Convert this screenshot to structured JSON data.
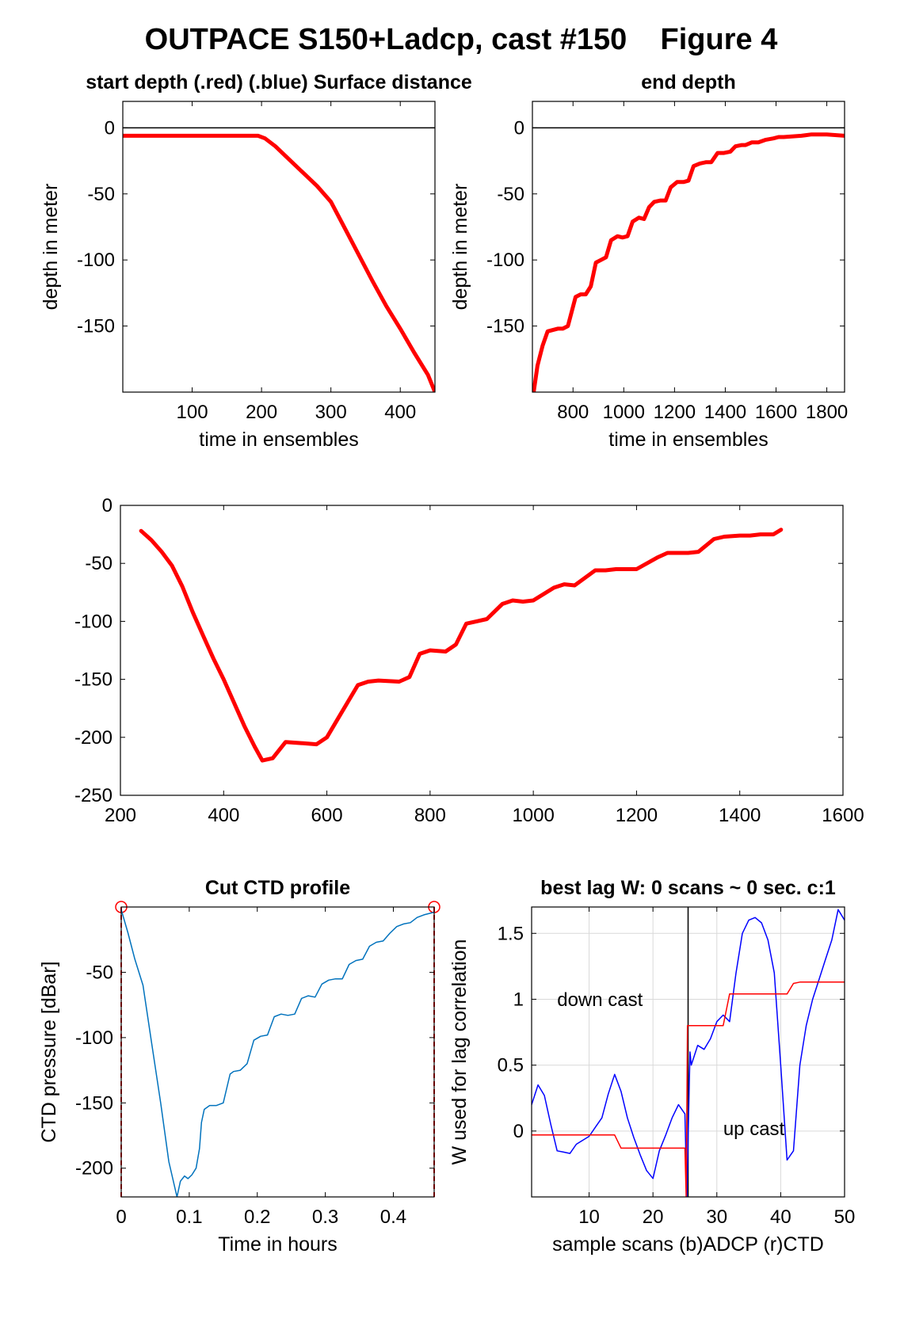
{
  "figure_title": "OUTPACE S150+Ladcp, cast #150    Figure 4",
  "colors": {
    "red": "#ff0000",
    "blue": "#0000ff",
    "ctd": "#0072bd",
    "grid": "#d9d9d9",
    "axis": "#000000"
  },
  "chart_data": [
    {
      "id": "p1",
      "type": "line",
      "title": "start depth (.red) (.blue) Surface distance",
      "xlabel": "time in ensembles",
      "ylabel": "depth in meter",
      "xlim": [
        0,
        450
      ],
      "ylim": [
        -200,
        20
      ],
      "xticks": [
        100,
        200,
        300,
        400
      ],
      "yticks": [
        0,
        -50,
        -100,
        -150
      ],
      "zero_line": true,
      "series": [
        {
          "color": "red",
          "width": 5,
          "x": [
            0,
            100,
            195,
            205,
            220,
            240,
            260,
            280,
            300,
            320,
            340,
            360,
            380,
            400,
            420,
            440,
            450
          ],
          "y": [
            -6,
            -6,
            -6,
            -8,
            -14,
            -24,
            -34,
            -44,
            -56,
            -76,
            -96,
            -116,
            -135,
            -152,
            -170,
            -187,
            -200
          ]
        }
      ]
    },
    {
      "id": "p2",
      "type": "line",
      "title": "end depth",
      "xlabel": "time in ensembles",
      "ylabel": "depth in meter",
      "xlim": [
        640,
        1870
      ],
      "ylim": [
        -200,
        20
      ],
      "xticks": [
        800,
        1000,
        1200,
        1400,
        1600,
        1800
      ],
      "yticks": [
        0,
        -50,
        -100,
        -150
      ],
      "zero_line": true,
      "series": [
        {
          "color": "red",
          "width": 5,
          "x": [
            645,
            660,
            680,
            700,
            740,
            760,
            780,
            810,
            830,
            850,
            870,
            890,
            910,
            930,
            950,
            975,
            995,
            1015,
            1035,
            1060,
            1080,
            1100,
            1120,
            1145,
            1165,
            1185,
            1210,
            1235,
            1255,
            1275,
            1300,
            1325,
            1345,
            1370,
            1395,
            1420,
            1440,
            1465,
            1480,
            1505,
            1530,
            1560,
            1590,
            1610,
            1630,
            1700,
            1740,
            1800,
            1870
          ],
          "y": [
            -200,
            -180,
            -165,
            -154,
            -152,
            -152,
            -150,
            -128,
            -126,
            -126,
            -120,
            -102,
            -100,
            -98,
            -85,
            -82,
            -83,
            -82,
            -71,
            -68,
            -69,
            -60,
            -56,
            -55,
            -55,
            -45,
            -41,
            -41,
            -40,
            -29,
            -27,
            -26,
            -26,
            -19,
            -19,
            -18,
            -14,
            -13,
            -13,
            -11,
            -11,
            -9,
            -8,
            -7,
            -7,
            -6,
            -5,
            -5,
            -6
          ]
        }
      ]
    },
    {
      "id": "p3",
      "type": "line",
      "title": "",
      "xlabel": "",
      "ylabel": "",
      "xlim": [
        200,
        1600
      ],
      "ylim": [
        -250,
        0
      ],
      "xticks": [
        200,
        400,
        600,
        800,
        1000,
        1200,
        1400,
        1600
      ],
      "yticks": [
        0,
        -50,
        -100,
        -150,
        -200,
        -250
      ],
      "zero_line": false,
      "series": [
        {
          "color": "red",
          "width": 5,
          "x": [
            240,
            260,
            280,
            300,
            320,
            340,
            360,
            380,
            400,
            420,
            440,
            460,
            475,
            495,
            520,
            550,
            580,
            600,
            620,
            640,
            660,
            680,
            700,
            740,
            760,
            780,
            800,
            830,
            850,
            870,
            890,
            910,
            940,
            960,
            980,
            1000,
            1040,
            1060,
            1080,
            1120,
            1140,
            1160,
            1200,
            1240,
            1260,
            1300,
            1320,
            1350,
            1370,
            1400,
            1420,
            1440,
            1465,
            1480
          ],
          "y": [
            -22,
            -30,
            -40,
            -52,
            -70,
            -92,
            -112,
            -132,
            -150,
            -170,
            -190,
            -208,
            -220,
            -218,
            -204,
            -205,
            -206,
            -200,
            -185,
            -170,
            -155,
            -152,
            -151,
            -152,
            -148,
            -128,
            -125,
            -126,
            -120,
            -102,
            -100,
            -98,
            -85,
            -82,
            -83,
            -82,
            -71,
            -68,
            -69,
            -56,
            -56,
            -55,
            -55,
            -45,
            -41,
            -41,
            -40,
            -29,
            -27,
            -26,
            -26,
            -25,
            -25,
            -21
          ]
        }
      ]
    },
    {
      "id": "p4",
      "type": "line",
      "title": "Cut CTD profile",
      "xlabel": "Time in hours",
      "ylabel": "CTD pressure [dBar]",
      "xlim": [
        0,
        0.46
      ],
      "ylim": [
        -222,
        0
      ],
      "xticks": [
        0,
        0.1,
        0.2,
        0.3,
        0.4
      ],
      "yticks": [
        -50,
        -100,
        -150,
        -200
      ],
      "zero_line": false,
      "cut_markers": {
        "x": [
          0,
          0.46
        ],
        "y": 0
      },
      "series": [
        {
          "color": "ctd",
          "width": 1.5,
          "x": [
            0.0,
            0.01,
            0.02,
            0.032,
            0.045,
            0.058,
            0.07,
            0.082,
            0.087,
            0.093,
            0.098,
            0.104,
            0.11,
            0.115,
            0.118,
            0.122,
            0.13,
            0.14,
            0.15,
            0.16,
            0.165,
            0.175,
            0.185,
            0.195,
            0.205,
            0.215,
            0.225,
            0.235,
            0.245,
            0.255,
            0.265,
            0.275,
            0.285,
            0.295,
            0.305,
            0.315,
            0.325,
            0.335,
            0.345,
            0.355,
            0.365,
            0.375,
            0.385,
            0.395,
            0.405,
            0.415,
            0.425,
            0.435,
            0.445,
            0.46
          ],
          "y": [
            -2,
            -20,
            -40,
            -60,
            -105,
            -150,
            -195,
            -222,
            -210,
            -206,
            -208,
            -205,
            -200,
            -185,
            -165,
            -155,
            -152,
            -152,
            -150,
            -128,
            -126,
            -125,
            -120,
            -102,
            -99,
            -98,
            -84,
            -82,
            -83,
            -82,
            -70,
            -68,
            -69,
            -59,
            -56,
            -55,
            -55,
            -44,
            -41,
            -40,
            -30,
            -27,
            -26,
            -20,
            -15,
            -13,
            -12,
            -8,
            -6,
            -4
          ]
        }
      ]
    },
    {
      "id": "p5",
      "type": "line",
      "title": "best lag W: 0 scans ~ 0 sec.  c:1",
      "xlabel": "sample scans (b)ADCP (r)CTD",
      "ylabel": "W used for lag correlation",
      "xlim": [
        1,
        50
      ],
      "ylim": [
        -0.5,
        1.7
      ],
      "xticks": [
        10,
        20,
        30,
        40,
        50
      ],
      "yticks": [
        0,
        0.5,
        1,
        1.5
      ],
      "grid": true,
      "vline_x": 25.5,
      "annotations": [
        {
          "text": "down cast",
          "x": 5,
          "y": 0.95
        },
        {
          "text": "up cast",
          "x": 31,
          "y": -0.03
        }
      ],
      "series": [
        {
          "name": "ADCP",
          "color": "blue",
          "width": 1.5,
          "x": [
            1,
            2,
            3,
            4,
            5,
            6,
            7,
            8,
            9,
            10,
            11,
            12,
            13,
            14,
            15,
            16,
            17,
            18,
            19,
            20,
            21,
            22,
            23,
            24,
            25,
            25.3,
            25.8,
            26,
            27,
            28,
            29,
            30,
            31,
            32,
            33,
            34,
            35,
            36,
            37,
            38,
            39,
            40,
            41,
            42,
            43,
            44,
            45,
            46,
            47,
            48,
            49,
            50
          ],
          "y": [
            0.2,
            0.35,
            0.27,
            0.05,
            -0.15,
            -0.16,
            -0.17,
            -0.1,
            -0.07,
            -0.04,
            0.03,
            0.1,
            0.28,
            0.43,
            0.3,
            0.1,
            -0.05,
            -0.18,
            -0.3,
            -0.36,
            -0.15,
            -0.03,
            0.1,
            0.2,
            0.13,
            -0.5,
            0.6,
            0.5,
            0.65,
            0.62,
            0.7,
            0.83,
            0.88,
            0.83,
            1.2,
            1.5,
            1.6,
            1.62,
            1.58,
            1.45,
            1.2,
            0.5,
            -0.22,
            -0.15,
            0.5,
            0.8,
            1.0,
            1.15,
            1.3,
            1.45,
            1.68,
            1.6
          ]
        },
        {
          "name": "CTD",
          "color": "red",
          "width": 1.5,
          "x": [
            1,
            4,
            14,
            15,
            25,
            25.2,
            25.4,
            26,
            31,
            32,
            33,
            41,
            42,
            43,
            50
          ],
          "y": [
            -0.03,
            -0.03,
            -0.03,
            -0.13,
            -0.13,
            -0.5,
            0.8,
            0.8,
            0.8,
            1.04,
            1.04,
            1.04,
            1.12,
            1.13,
            1.13
          ]
        }
      ]
    }
  ]
}
